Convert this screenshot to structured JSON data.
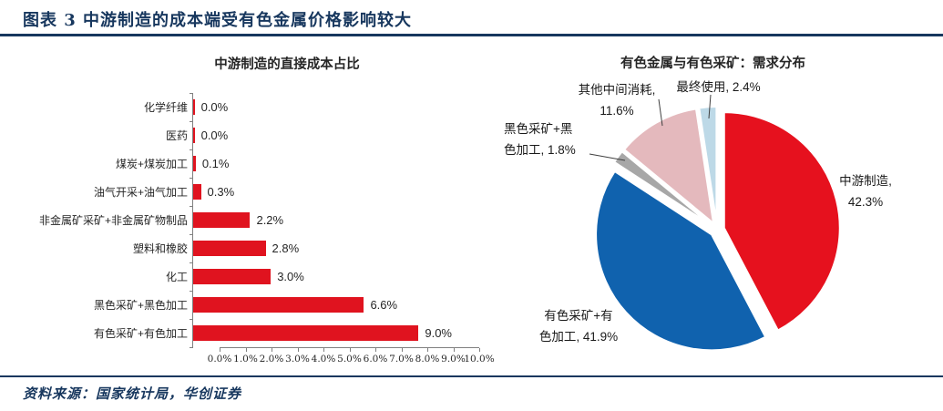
{
  "header": {
    "title": "图表 3  中游制造的成本端受有色金属价格影响较大"
  },
  "source": {
    "text": "资料来源：国家统计局，华创证券"
  },
  "colors": {
    "accent_navy": "#17375e",
    "bar_red": "#e0131f",
    "pie_red": "#e6111e",
    "pie_blue": "#1062ae",
    "pie_gray": "#a7a7a7",
    "pie_pink": "#e4b9bd",
    "pie_lightblue": "#bdd9e7",
    "axis_gray": "#808080"
  },
  "chart_data": [
    {
      "type": "bar",
      "orientation": "horizontal",
      "title": "中游制造的直接成本占比",
      "categories": [
        "化学纤维",
        "医药",
        "煤炭+煤炭加工",
        "油气开采+油气加工",
        "非金属矿采矿+非金属矿物制品",
        "塑料和橡胶",
        "化工",
        "黑色采矿+黑色加工",
        "有色采矿+有色加工"
      ],
      "values": [
        0.0,
        0.0,
        0.1,
        0.3,
        2.2,
        2.8,
        3.0,
        6.6,
        9.0
      ],
      "value_labels": [
        "0.0%",
        "0.0%",
        "0.1%",
        "0.3%",
        "2.2%",
        "2.8%",
        "3.0%",
        "6.6%",
        "9.0%"
      ],
      "xlim": [
        0,
        10
      ],
      "x_ticks": [
        "0.0%",
        "1.0%",
        "2.0%",
        "3.0%",
        "4.0%",
        "5.0%",
        "6.0%",
        "7.0%",
        "8.0%",
        "9.0%",
        "10.0%"
      ],
      "bar_color": "#e0131f",
      "grid": false,
      "legend": false
    },
    {
      "type": "pie",
      "title": "有色金属与有色采矿：需求分布",
      "start_angle_deg_from_top": 0,
      "direction": "clockwise",
      "exploded": true,
      "slices": [
        {
          "label": "中游制造",
          "value": 42.3,
          "color": "#e6111e",
          "display_lines": [
            "中游制造,",
            "42.3%"
          ]
        },
        {
          "label": "有色采矿+有色加工",
          "value": 41.9,
          "color": "#1062ae",
          "display_lines": [
            "有色采矿+有",
            "色加工, 41.9%"
          ]
        },
        {
          "label": "黑色采矿+黑色加工",
          "value": 1.8,
          "color": "#a7a7a7",
          "display_lines": [
            "黑色采矿+黑",
            "色加工, 1.8%"
          ]
        },
        {
          "label": "其他中间消耗",
          "value": 11.6,
          "color": "#e4b9bd",
          "display_lines": [
            "其他中间消耗,",
            "11.6%"
          ]
        },
        {
          "label": "最终使用",
          "value": 2.4,
          "color": "#bdd9e7",
          "display_lines": [
            "最终使用, 2.4%"
          ]
        }
      ]
    }
  ]
}
